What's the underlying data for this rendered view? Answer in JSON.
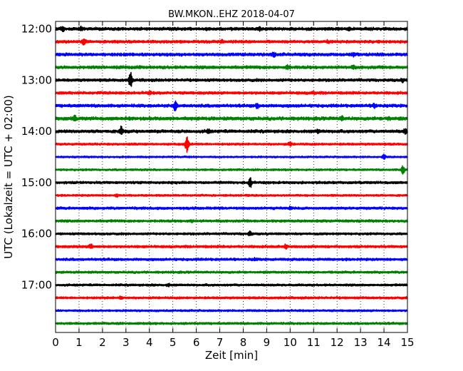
{
  "chart_data": {
    "type": "line",
    "title": "BW.MKON..EHZ 2018-04-07",
    "xlabel": "Zeit  [min]",
    "ylabel": "UTC (Lokalzeit = UTC + 02:00)",
    "xlim": [
      0,
      15
    ],
    "x_ticks": [
      "0",
      "1",
      "2",
      "3",
      "4",
      "5",
      "6",
      "7",
      "8",
      "9",
      "10",
      "11",
      "12",
      "13",
      "14",
      "15"
    ],
    "y_ticks": [
      "12:00",
      "13:00",
      "14:00",
      "15:00",
      "16:00",
      "17:00"
    ],
    "vertical_grid": "dotted",
    "trace_colors": [
      "#000000",
      "#ff0000",
      "#0000ff",
      "#008000"
    ],
    "traces": [
      {
        "start": "12:00",
        "amplitude": 0.55,
        "events": [
          [
            0.3,
            1.0
          ],
          [
            1.1,
            0.7
          ],
          [
            6.5,
            0.5
          ],
          [
            8.7,
            0.7
          ],
          [
            12.5,
            0.6
          ]
        ]
      },
      {
        "start": "12:15",
        "amplitude": 0.5,
        "events": [
          [
            1.2,
            1.4
          ],
          [
            7.1,
            0.6
          ],
          [
            11.6,
            0.5
          ]
        ]
      },
      {
        "start": "12:30",
        "amplitude": 0.55,
        "events": [
          [
            9.3,
            0.8
          ],
          [
            12.7,
            0.6
          ]
        ]
      },
      {
        "start": "12:45",
        "amplitude": 0.55,
        "events": [
          [
            9.9,
            0.8
          ],
          [
            12.7,
            0.5
          ]
        ]
      },
      {
        "start": "13:00",
        "amplitude": 0.5,
        "events": [
          [
            3.2,
            3.0
          ],
          [
            14.8,
            0.6
          ]
        ]
      },
      {
        "start": "13:15",
        "amplitude": 0.5,
        "events": [
          [
            4.0,
            0.5
          ],
          [
            11.0,
            0.4
          ]
        ]
      },
      {
        "start": "13:30",
        "amplitude": 0.55,
        "events": [
          [
            5.1,
            2.0
          ],
          [
            8.6,
            0.9
          ],
          [
            13.6,
            0.9
          ]
        ]
      },
      {
        "start": "13:45",
        "amplitude": 0.6,
        "events": [
          [
            0.8,
            1.0
          ],
          [
            12.2,
            0.7
          ],
          [
            14.2,
            0.6
          ]
        ]
      },
      {
        "start": "14:00",
        "amplitude": 0.55,
        "events": [
          [
            2.8,
            1.8
          ],
          [
            6.5,
            0.8
          ],
          [
            11.2,
            0.7
          ],
          [
            14.9,
            1.0
          ]
        ]
      },
      {
        "start": "14:15",
        "amplitude": 0.4,
        "events": [
          [
            5.6,
            3.5
          ],
          [
            10.0,
            0.8
          ]
        ]
      },
      {
        "start": "14:30",
        "amplitude": 0.3,
        "events": [
          [
            14.0,
            0.9
          ]
        ]
      },
      {
        "start": "14:45",
        "amplitude": 0.35,
        "events": [
          [
            14.8,
            1.8
          ]
        ]
      },
      {
        "start": "15:00",
        "amplitude": 0.45,
        "events": [
          [
            8.3,
            2.0
          ]
        ]
      },
      {
        "start": "15:15",
        "amplitude": 0.35,
        "events": [
          [
            2.6,
            0.5
          ]
        ]
      },
      {
        "start": "15:30",
        "amplitude": 0.45,
        "events": [
          [
            10.0,
            0.6
          ]
        ]
      },
      {
        "start": "15:45",
        "amplitude": 0.45,
        "events": [
          [
            5.8,
            0.5
          ]
        ]
      },
      {
        "start": "16:00",
        "amplitude": 0.4,
        "events": [
          [
            8.3,
            1.0
          ]
        ]
      },
      {
        "start": "16:15",
        "amplitude": 0.45,
        "events": [
          [
            1.5,
            1.0
          ],
          [
            9.8,
            0.8
          ]
        ]
      },
      {
        "start": "16:30",
        "amplitude": 0.45,
        "events": [
          [
            8.5,
            0.4
          ]
        ]
      },
      {
        "start": "16:45",
        "amplitude": 0.4,
        "events": []
      },
      {
        "start": "17:00",
        "amplitude": 0.4,
        "events": [
          [
            4.8,
            0.5
          ]
        ]
      },
      {
        "start": "17:15",
        "amplitude": 0.4,
        "events": [
          [
            2.8,
            0.6
          ]
        ]
      },
      {
        "start": "17:30",
        "amplitude": 0.35,
        "events": []
      },
      {
        "start": "17:45",
        "amplitude": 0.4,
        "events": []
      }
    ]
  }
}
